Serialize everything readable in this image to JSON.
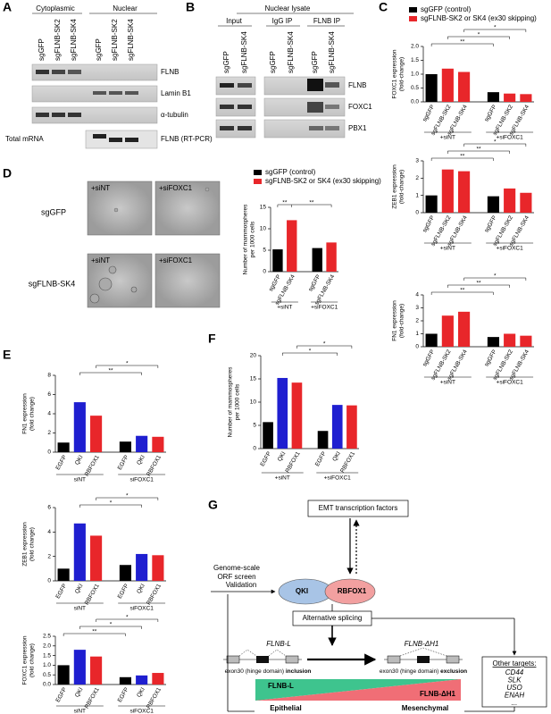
{
  "A": {
    "label": "A",
    "headers": [
      "Cytoplasmic",
      "Nuclear"
    ],
    "lanes": [
      "sgGFP",
      "sgFLNB-SK2",
      "sgFLNB-SK4",
      "sgGFP",
      "sgFLNB-SK2",
      "sgFLNB-SK4"
    ],
    "rows": [
      "FLNB",
      "Lamin B1",
      "α-tubulin"
    ],
    "mrna_label": "Total mRNA",
    "rtpcr_label": "FLNB (RT-PCR)"
  },
  "B": {
    "label": "B",
    "title": "Nuclear lysate",
    "groups": [
      "Input",
      "IgG IP",
      "FLNB IP"
    ],
    "lanes": [
      "sgGFP",
      "sgFLNB-SK4",
      "sgGFP",
      "sgFLNB-SK4",
      "sgGFP",
      "sgFLNB-SK4"
    ],
    "rows": [
      "FLNB",
      "FOXC1",
      "PBX1"
    ]
  },
  "C": {
    "label": "C",
    "legend": [
      {
        "name": "sgGFP (control)",
        "color": "#000000"
      },
      {
        "name": "sgFLNB-SK2 or SK4 (ex30 skipping)",
        "color": "#e8262a"
      }
    ],
    "charts": [
      {
        "type": "bar",
        "ylabel": [
          "FOXC1 expression",
          "(fold-change)"
        ],
        "categories": [
          "sgGFP",
          "sgFLNB-SK2",
          "sgFLNB-SK4",
          "sgGFP",
          "sgFLNB-SK2",
          "sgFLNB-SK4"
        ],
        "values": [
          1.0,
          1.2,
          1.08,
          0.35,
          0.3,
          0.28
        ],
        "colors": [
          "#000000",
          "#e8262a",
          "#e8262a",
          "#000000",
          "#e8262a",
          "#e8262a"
        ],
        "ylim": [
          0,
          2
        ],
        "yticks": [
          {
            "value": 0,
            "label": "0.0"
          },
          {
            "value": 0.5,
            "label": "0.5"
          },
          {
            "value": 1,
            "label": "1.0"
          },
          {
            "value": 1.5,
            "label": "1.5"
          },
          {
            "value": 2,
            "label": "2.0"
          }
        ],
        "groups": [
          "+siNT",
          "+siFOXC1"
        ],
        "significance": [
          "**",
          "*",
          "*"
        ]
      },
      {
        "type": "bar",
        "ylabel": [
          "ZEB1 expression",
          "(fold-change)"
        ],
        "categories": [
          "sgGFP",
          "sgFLNB-SK2",
          "sgFLNB-SK4",
          "sgGFP",
          "sgFLNB-SK2",
          "sgFLNB-SK4"
        ],
        "values": [
          1.0,
          2.5,
          2.4,
          0.95,
          1.4,
          1.15
        ],
        "colors": [
          "#000000",
          "#e8262a",
          "#e8262a",
          "#000000",
          "#e8262a",
          "#e8262a"
        ],
        "ylim": [
          0,
          3
        ],
        "yticks": [
          0,
          1,
          2,
          3
        ],
        "groups": [
          "+siNT",
          "+siFOXC1"
        ],
        "significance": [
          "**",
          "**",
          "*"
        ]
      },
      {
        "type": "bar",
        "ylabel": [
          "FN1 expression",
          "(fold-change)"
        ],
        "categories": [
          "sgGFP",
          "sgFLNB-SK2",
          "sgFLNB-SK4",
          "sgGFP",
          "sgFLNB-SK2",
          "sgFLNB-SK4"
        ],
        "values": [
          1.0,
          2.4,
          2.7,
          0.75,
          1.0,
          0.85
        ],
        "colors": [
          "#000000",
          "#e8262a",
          "#e8262a",
          "#000000",
          "#e8262a",
          "#e8262a"
        ],
        "ylim": [
          0,
          4
        ],
        "yticks": [
          0,
          1,
          2,
          3,
          4
        ],
        "groups": [
          "+siNT",
          "+siFOXC1"
        ],
        "significance": [
          "**",
          "**",
          "*"
        ]
      }
    ]
  },
  "D": {
    "label": "D",
    "columns": [
      "+siNT",
      "+siFOXC1"
    ],
    "rows": [
      "sgGFP",
      "sgFLNB-SK4"
    ],
    "legend": [
      {
        "name": "sgGFP (control)",
        "color": "#000000"
      },
      {
        "name": "sgFLNB-SK2 or SK4 (ex30 skipping)",
        "color": "#e8262a"
      }
    ],
    "chart": {
      "type": "bar",
      "ylabel": [
        "Number of mammospheres",
        "per 1000 cells"
      ],
      "categories": [
        "sgGFP",
        "sgFLNB-SK4",
        "sgGFP",
        "sgFLNB-SK4"
      ],
      "values": [
        5.2,
        12.0,
        5.5,
        6.8
      ],
      "colors": [
        "#000000",
        "#e8262a",
        "#000000",
        "#e8262a"
      ],
      "ylim": [
        0,
        15
      ],
      "yticks": [
        0,
        5,
        10,
        15
      ],
      "groups": [
        "+siNT",
        "+siFOXC1"
      ],
      "significance": [
        "**",
        "**"
      ]
    }
  },
  "E": {
    "label": "E",
    "charts": [
      {
        "type": "bar",
        "ylabel": [
          "FN1 expression",
          "(fold change)"
        ],
        "categories": [
          "EGFP",
          "QKI",
          "RBFOX1",
          "EGFP",
          "QKI",
          "RBFOX1"
        ],
        "values": [
          1.0,
          5.2,
          3.8,
          1.1,
          1.7,
          1.6
        ],
        "colors": [
          "#000000",
          "#1f1fd0",
          "#e8262a",
          "#000000",
          "#1f1fd0",
          "#e8262a"
        ],
        "ylim": [
          0,
          8
        ],
        "yticks": [
          0,
          2,
          4,
          6,
          8
        ],
        "groups": [
          "siNT",
          "siFOXC1"
        ],
        "significance": [
          "**",
          "*"
        ]
      },
      {
        "type": "bar",
        "ylabel": [
          "ZEB1 expression",
          "(fold change)"
        ],
        "categories": [
          "EGFP",
          "QKI",
          "RBFOX1",
          "EGFP",
          "QKI",
          "RBFOX1"
        ],
        "values": [
          1.0,
          4.7,
          3.7,
          1.3,
          2.2,
          2.1
        ],
        "colors": [
          "#000000",
          "#1f1fd0",
          "#e8262a",
          "#000000",
          "#1f1fd0",
          "#e8262a"
        ],
        "ylim": [
          0,
          6
        ],
        "yticks": [
          0,
          2,
          4,
          6
        ],
        "groups": [
          "siNT",
          "siFOXC1"
        ],
        "significance": [
          "*",
          "*"
        ]
      },
      {
        "type": "bar",
        "ylabel": [
          "FOXC1 expression",
          "(fold change)"
        ],
        "categories": [
          "EGFP",
          "QKI",
          "RBFOX1",
          "EGFP",
          "QKI",
          "RBFOX1"
        ],
        "values": [
          1.0,
          1.8,
          1.45,
          0.38,
          0.47,
          0.6
        ],
        "colors": [
          "#000000",
          "#1f1fd0",
          "#e8262a",
          "#000000",
          "#1f1fd0",
          "#e8262a"
        ],
        "ylim": [
          0,
          2.5
        ],
        "yticks": [
          {
            "value": 0,
            "label": "0.0"
          },
          {
            "value": 0.5,
            "label": "0.5"
          },
          {
            "value": 1,
            "label": "1.0"
          },
          {
            "value": 1.5,
            "label": "1.5"
          },
          {
            "value": 2,
            "label": "2.0"
          },
          {
            "value": 2.5,
            "label": "2.5"
          }
        ],
        "groups": [
          "siNT",
          "siFOXC1"
        ],
        "significance": [
          "**",
          "*",
          "*"
        ]
      }
    ]
  },
  "F": {
    "label": "F",
    "chart": {
      "type": "bar",
      "ylabel": [
        "Number of mammospheres",
        "per 1000 cells"
      ],
      "categories": [
        "EGFP",
        "QKI",
        "RBFOX1",
        "EGFP",
        "QKI",
        "RBFOX1"
      ],
      "values": [
        5.7,
        15.2,
        14.2,
        3.8,
        9.4,
        9.3
      ],
      "colors": [
        "#000000",
        "#1f1fd0",
        "#e8262a",
        "#000000",
        "#1f1fd0",
        "#e8262a"
      ],
      "ylim": [
        0,
        20
      ],
      "yticks": [
        0,
        5,
        10,
        15,
        20
      ],
      "groups": [
        "+siNT",
        "+siFOXC1"
      ],
      "significance": [
        "*",
        "*"
      ]
    }
  },
  "G": {
    "label": "G",
    "emt": "EMT transcription factors",
    "screen": [
      "Genome-scale",
      "ORF screen"
    ],
    "validation": "Validation",
    "qki": "QKI",
    "rbfox1": "RBFOX1",
    "splicing": "Alternative splicing",
    "isoform_l": "FLNB-L",
    "isoform_dh1": "FLNB-ΔH1",
    "inclusion": [
      "exon30 (hinge domain) ",
      "inclusion"
    ],
    "exclusion": [
      "exon30 (hinge domain) ",
      "exclusion"
    ],
    "bar_left": "FLNB-L",
    "bar_right": "FLNB-ΔH1",
    "epithelial": "Epithelial",
    "mesenchymal": "Mesenchymal",
    "other_title": "Other targets:",
    "other_targets": [
      "CD44",
      "SLK",
      "USO",
      "ENAH",
      "..."
    ]
  }
}
